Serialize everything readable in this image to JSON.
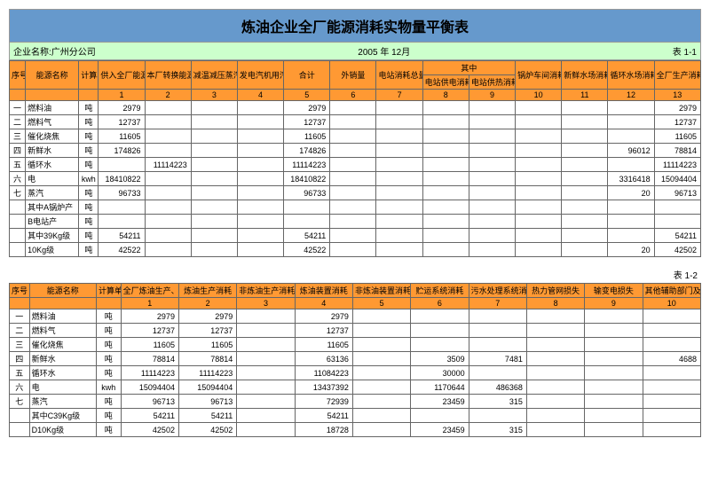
{
  "title": "炼油企业全厂能源消耗实物量平衡表",
  "company_label": "企业名称:广州分公司",
  "date_label": "2005 年  12月",
  "table1_label": "表    1-1",
  "table2_label": "表    1-2",
  "t1": {
    "head": {
      "seq": "序号",
      "name": "能源名称",
      "unit": "计算单位",
      "c1": "供入全厂能源总量",
      "c2": "本厂转换能源量",
      "c3": "减温减压蒸汽并网量",
      "c4": "发电汽机用汽及降线量",
      "c5": "合计",
      "c6": "外销量",
      "c7": "电站消耗总量",
      "qt": "其中",
      "c8": "电站供电消耗",
      "c9": "电站供热消耗",
      "c10": "锅炉车间消耗",
      "c11": "新鲜水场消耗",
      "c12": "循环水场消耗",
      "c13": "全厂生产消耗"
    },
    "colnums": [
      "1",
      "2",
      "3",
      "4",
      "5",
      "6",
      "7",
      "8",
      "9",
      "10",
      "11",
      "12",
      "13"
    ],
    "rows": [
      {
        "seq": "一",
        "name": "燃料油",
        "unit": "吨",
        "c1": "2979",
        "c5": "2979",
        "c13": "2979"
      },
      {
        "seq": "二",
        "name": "燃料气",
        "unit": "吨",
        "c1": "12737",
        "c5": "12737",
        "c13": "12737"
      },
      {
        "seq": "三",
        "name": "催化烧焦",
        "unit": "吨",
        "c1": "11605",
        "c5": "11605",
        "c13": "11605"
      },
      {
        "seq": "四",
        "name": "新鲜水",
        "unit": "吨",
        "c1": "174826",
        "c5": "174826",
        "c12": "96012",
        "c13": "78814"
      },
      {
        "seq": "五",
        "name": "循环水",
        "unit": "吨",
        "c2": "11114223",
        "c5": "11114223",
        "c13": "11114223"
      },
      {
        "seq": "六",
        "name": "电",
        "unit": "kwh",
        "c1": "18410822",
        "c5": "18410822",
        "c12": "3316418",
        "c13": "15094404"
      },
      {
        "seq": "七",
        "name": "蒸汽",
        "unit": "吨",
        "c1": "96733",
        "c5": "96733",
        "c12": "20",
        "c13": "96713"
      },
      {
        "seq": "",
        "name": "其中A锅炉产",
        "unit": "吨"
      },
      {
        "seq": "",
        "name": "B电站产",
        "unit": "吨"
      },
      {
        "seq": "",
        "name": "其中39Kg级",
        "unit": "吨",
        "c1": "54211",
        "c5": "54211",
        "c13": "54211"
      },
      {
        "seq": "",
        "name": "10Kg级",
        "unit": "吨",
        "c1": "42522",
        "c5": "42522",
        "c12": "20",
        "c13": "42502"
      }
    ]
  },
  "t2": {
    "head": {
      "seq": "序号",
      "name": "能源名称",
      "unit": "计算单位",
      "c1": "全厂炼油生产、非炼油生产消耗",
      "c2": "炼油生产消耗",
      "c3": "非炼油生产消耗",
      "c4": "炼油装置消耗",
      "c5": "非炼油装置消耗",
      "c6": "贮运系统消耗",
      "c7": "污水处理系统消耗",
      "c8": "热力管网损失",
      "c9": "输变电损失",
      "c10": "其他辅助部门及生活福利部门消耗"
    },
    "colnums": [
      "1",
      "2",
      "3",
      "4",
      "5",
      "6",
      "7",
      "8",
      "9",
      "10"
    ],
    "rows": [
      {
        "seq": "一",
        "name": "燃料油",
        "unit": "吨",
        "c1": "2979",
        "c2": "2979",
        "c4": "2979"
      },
      {
        "seq": "二",
        "name": "燃料气",
        "unit": "吨",
        "c1": "12737",
        "c2": "12737",
        "c4": "12737"
      },
      {
        "seq": "三",
        "name": "催化烧焦",
        "unit": "吨",
        "c1": "11605",
        "c2": "11605",
        "c4": "11605"
      },
      {
        "seq": "四",
        "name": "新鲜水",
        "unit": "吨",
        "c1": "78814",
        "c2": "78814",
        "c4": "63136",
        "c6": "3509",
        "c7": "7481",
        "c10": "4688"
      },
      {
        "seq": "五",
        "name": "循环水",
        "unit": "吨",
        "c1": "11114223",
        "c2": "11114223",
        "c4": "11084223",
        "c6": "30000"
      },
      {
        "seq": "六",
        "name": "电",
        "unit": "kwh",
        "c1": "15094404",
        "c2": "15094404",
        "c4": "13437392",
        "c6": "1170644",
        "c7": "486368"
      },
      {
        "seq": "七",
        "name": "蒸汽",
        "unit": "吨",
        "c1": "96713",
        "c2": "96713",
        "c4": "72939",
        "c6": "23459",
        "c7": "315"
      },
      {
        "seq": "",
        "name": "其中C39Kg级",
        "unit": "吨",
        "c1": "54211",
        "c2": "54211",
        "c4": "54211"
      },
      {
        "seq": "",
        "name": "D10Kg级",
        "unit": "吨",
        "c1": "42502",
        "c2": "42502",
        "c4": "18728",
        "c6": "23459",
        "c7": "315"
      }
    ]
  }
}
